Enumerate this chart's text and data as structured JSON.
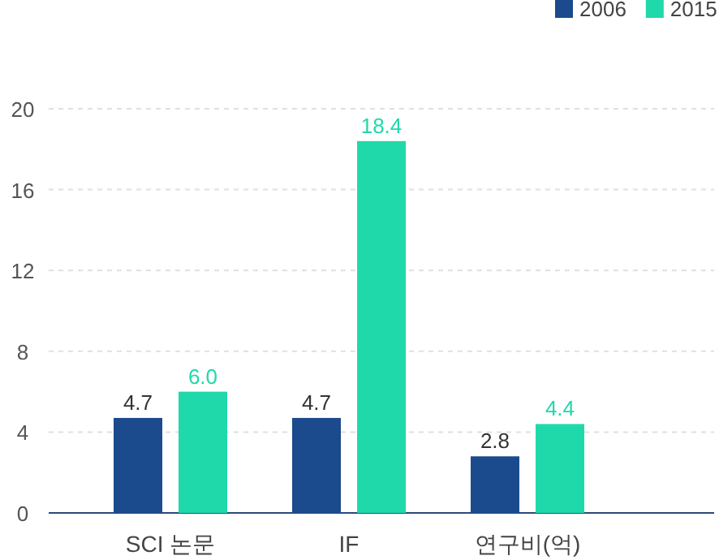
{
  "chart_data": {
    "type": "bar",
    "categories": [
      "SCI 논문",
      "IF",
      "연구비(억)"
    ],
    "series": [
      {
        "name": "2006",
        "color": "#1b4b8c",
        "values": [
          4.7,
          4.7,
          2.8
        ],
        "value_labels": [
          "4.7",
          "4.7",
          "2.8"
        ]
      },
      {
        "name": "2015",
        "color": "#20d9aa",
        "values": [
          6.0,
          18.4,
          4.4
        ],
        "value_labels": [
          "6.0",
          "18.4",
          "4.4"
        ]
      }
    ],
    "ylim": [
      0,
      20
    ],
    "yticks": [
      0,
      4,
      8,
      12,
      16,
      20
    ],
    "grid": "y",
    "legend": "top right"
  }
}
